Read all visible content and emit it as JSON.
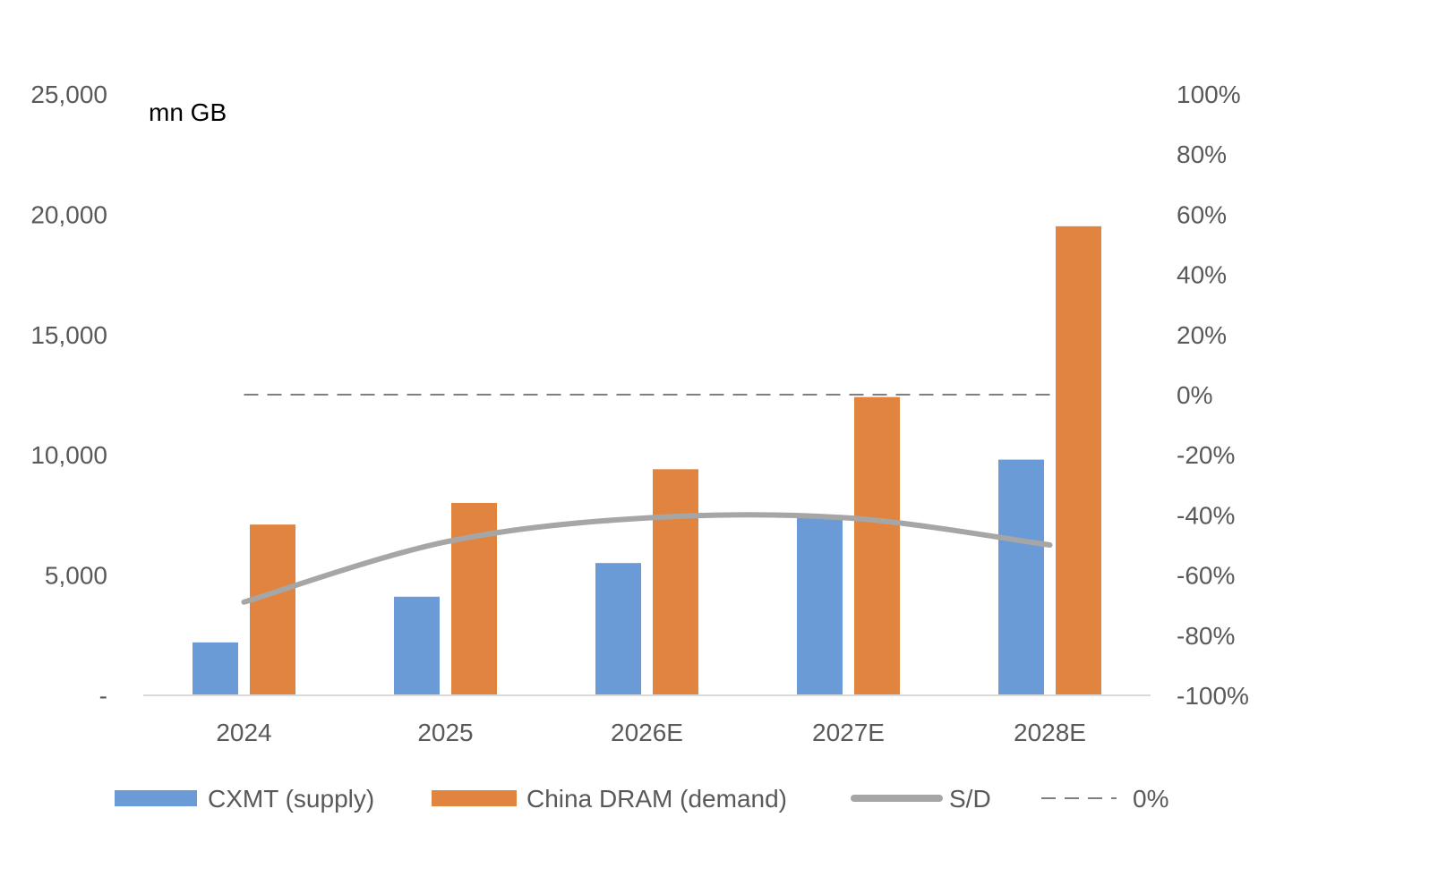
{
  "chart_data": {
    "type": "bar",
    "unit_label": "mn GB",
    "categories": [
      "2024",
      "2025",
      "2026E",
      "2027E",
      "2028E"
    ],
    "series": [
      {
        "name": "CXMT (supply)",
        "type": "bar",
        "axis": "left",
        "color": "#6A9BD6",
        "values": [
          2200,
          4100,
          5500,
          7500,
          9800
        ]
      },
      {
        "name": "China DRAM (demand)",
        "type": "bar",
        "axis": "left",
        "color": "#E0843F",
        "values": [
          7100,
          8000,
          9400,
          12400,
          19500
        ]
      },
      {
        "name": "S/D",
        "type": "line",
        "axis": "right",
        "color": "#A6A6A6",
        "values": [
          -0.69,
          -0.49,
          -0.41,
          -0.41,
          -0.5
        ]
      },
      {
        "name": "0%",
        "type": "line",
        "style": "dashed",
        "axis": "right",
        "color": "#7F7F7F",
        "values": [
          0,
          0,
          0,
          0,
          0
        ]
      }
    ],
    "y_left": {
      "ylim": [
        0,
        25000
      ],
      "ticks": [
        0,
        5000,
        10000,
        15000,
        20000,
        25000
      ],
      "tick_labels": [
        "-",
        "5,000",
        "10,000",
        "15,000",
        "20,000",
        "25,000"
      ]
    },
    "y_right": {
      "ylim": [
        -1,
        1
      ],
      "ticks": [
        -1,
        -0.8,
        -0.6,
        -0.4,
        -0.2,
        0,
        0.2,
        0.4,
        0.6,
        0.8,
        1
      ],
      "tick_labels": [
        "-100%",
        "-80%",
        "-60%",
        "-40%",
        "-20%",
        "0%",
        "20%",
        "40%",
        "60%",
        "80%",
        "100%"
      ]
    },
    "grid": false,
    "legend_position": "bottom"
  }
}
